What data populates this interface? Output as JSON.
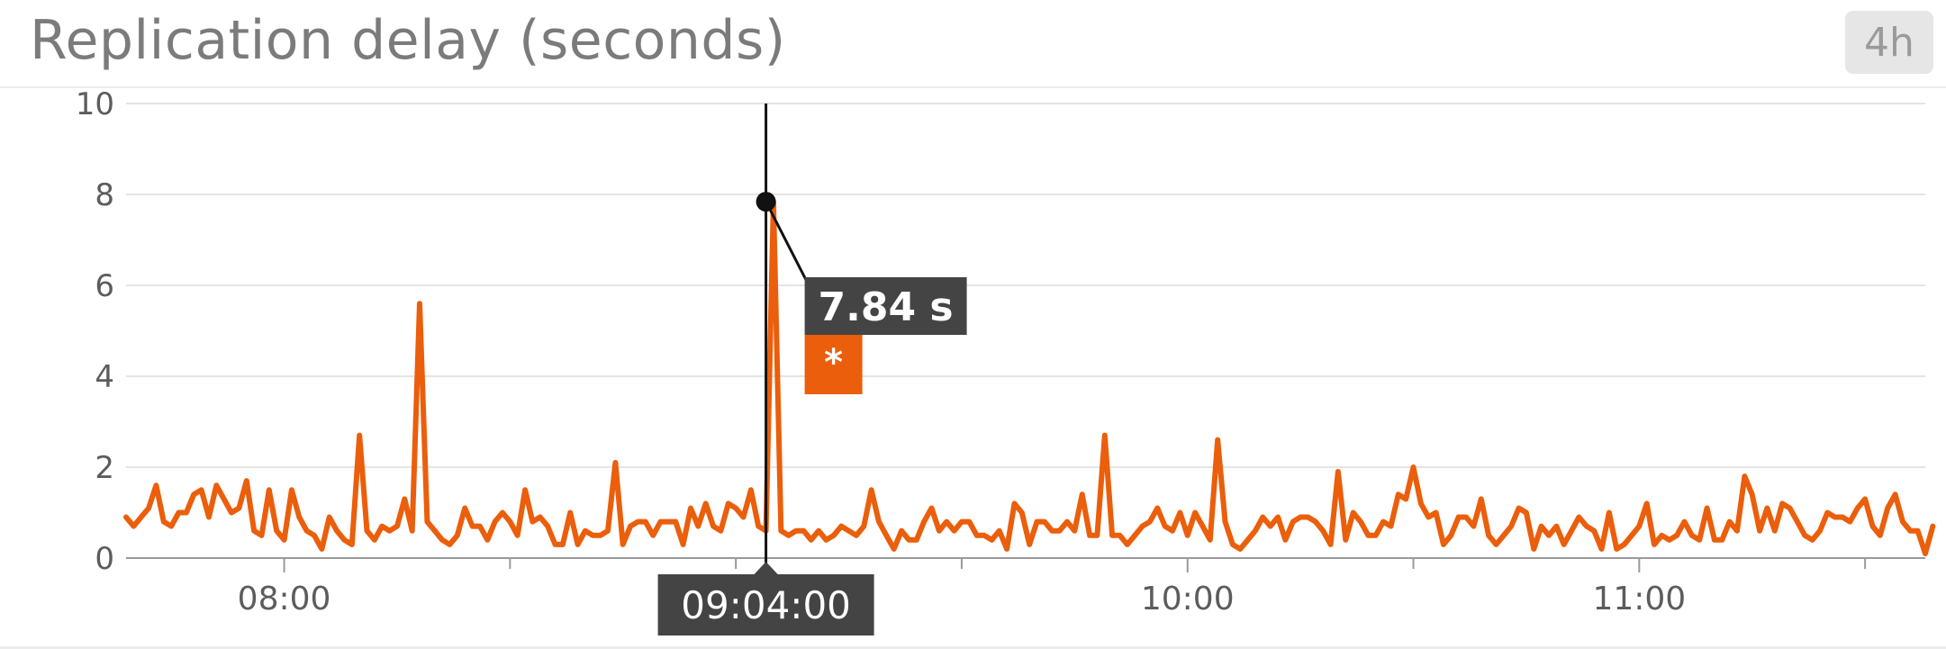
{
  "widget": {
    "title": "Replication delay (seconds)",
    "time_range": "4h"
  },
  "colors": {
    "series": "#eb5e0b",
    "grid": "#e4e4e4",
    "axis": "#9a9a9a",
    "tooltip_bg": "#444444",
    "cursor": "#111111"
  },
  "tooltip": {
    "value_label": "7.84 s",
    "series_marker": "*",
    "cursor_time": "09:04:00"
  },
  "chart_data": {
    "type": "line",
    "title": "Replication delay (seconds)",
    "xlabel": "",
    "ylabel": "",
    "ylim": [
      0,
      10
    ],
    "yticks": [
      0,
      2,
      4,
      6,
      8,
      10
    ],
    "x_start": "07:39",
    "x_end": "11:38",
    "xticks": [
      "08:00",
      "10:00",
      "11:00"
    ],
    "minor_xticks": [
      "08:30",
      "09:00",
      "09:30",
      "10:30",
      "11:30"
    ],
    "cursor": {
      "x": "09:04",
      "y": 7.84
    },
    "grid": true,
    "series": [
      {
        "name": "",
        "step_minutes": 1,
        "values": [
          0.9,
          0.7,
          0.9,
          1.1,
          1.6,
          0.8,
          0.7,
          1.0,
          1.0,
          1.4,
          1.5,
          0.9,
          1.6,
          1.3,
          1.0,
          1.1,
          1.7,
          0.6,
          0.5,
          1.5,
          0.6,
          0.4,
          1.5,
          0.9,
          0.6,
          0.5,
          0.2,
          0.9,
          0.6,
          0.4,
          0.3,
          2.7,
          0.6,
          0.4,
          0.7,
          0.6,
          0.7,
          1.3,
          0.6,
          5.6,
          0.8,
          0.6,
          0.4,
          0.3,
          0.5,
          1.1,
          0.7,
          0.7,
          0.4,
          0.8,
          1.0,
          0.8,
          0.5,
          1.5,
          0.8,
          0.9,
          0.7,
          0.3,
          0.3,
          1.0,
          0.3,
          0.6,
          0.5,
          0.5,
          0.6,
          2.1,
          0.3,
          0.7,
          0.8,
          0.8,
          0.5,
          0.8,
          0.8,
          0.8,
          0.3,
          1.1,
          0.7,
          1.2,
          0.7,
          0.6,
          1.2,
          1.1,
          0.9,
          1.5,
          0.7,
          0.6,
          7.84,
          0.6,
          0.5,
          0.6,
          0.6,
          0.4,
          0.6,
          0.4,
          0.5,
          0.7,
          0.6,
          0.5,
          0.7,
          1.5,
          0.8,
          0.5,
          0.2,
          0.6,
          0.4,
          0.4,
          0.8,
          1.1,
          0.6,
          0.8,
          0.6,
          0.8,
          0.8,
          0.5,
          0.5,
          0.4,
          0.6,
          0.2,
          1.2,
          1.0,
          0.3,
          0.8,
          0.8,
          0.6,
          0.6,
          0.8,
          0.6,
          1.4,
          0.5,
          0.5,
          2.7,
          0.5,
          0.5,
          0.3,
          0.5,
          0.7,
          0.8,
          1.1,
          0.7,
          0.6,
          1.0,
          0.5,
          1.0,
          0.7,
          0.4,
          2.6,
          0.8,
          0.3,
          0.2,
          0.4,
          0.6,
          0.9,
          0.7,
          0.9,
          0.4,
          0.8,
          0.9,
          0.9,
          0.8,
          0.6,
          0.3,
          1.9,
          0.4,
          1.0,
          0.8,
          0.5,
          0.5,
          0.8,
          0.7,
          1.4,
          1.3,
          2.0,
          1.2,
          0.9,
          1.0,
          0.3,
          0.5,
          0.9,
          0.9,
          0.7,
          1.3,
          0.5,
          0.3,
          0.5,
          0.7,
          1.1,
          1.0,
          0.2,
          0.7,
          0.5,
          0.7,
          0.3,
          0.6,
          0.9,
          0.7,
          0.6,
          0.2,
          1.0,
          0.2,
          0.3,
          0.5,
          0.7,
          1.2,
          0.3,
          0.5,
          0.4,
          0.5,
          0.8,
          0.5,
          0.4,
          1.1,
          0.4,
          0.4,
          0.8,
          0.6,
          1.8,
          1.4,
          0.6,
          1.1,
          0.6,
          1.2,
          1.1,
          0.8,
          0.5,
          0.4,
          0.6,
          1.0,
          0.9,
          0.9,
          0.8,
          1.1,
          1.3,
          0.7,
          0.5,
          1.1,
          1.4,
          0.8,
          0.6,
          0.6,
          0.1,
          0.7
        ]
      }
    ]
  }
}
